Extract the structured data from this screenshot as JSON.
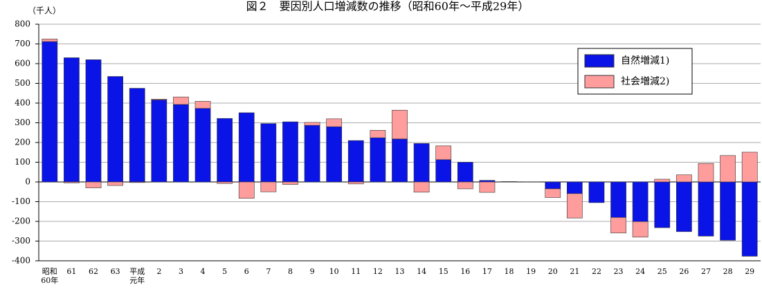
{
  "chart_data": {
    "type": "bar",
    "stacked": true,
    "title": "図２　要因別人口増減数の推移（昭和60年～平成29年）",
    "y_label": "（千人）",
    "categories": [
      "昭和\n60年",
      "61",
      "62",
      "63",
      "平成\n元年",
      "2",
      "3",
      "4",
      "5",
      "6",
      "7",
      "8",
      "9",
      "10",
      "11",
      "12",
      "13",
      "14",
      "15",
      "16",
      "17",
      "18",
      "19",
      "20",
      "21",
      "22",
      "23",
      "24",
      "25",
      "26",
      "27",
      "28",
      "29"
    ],
    "series": [
      {
        "name": "自然増減1)",
        "color": "#0a14e6",
        "values": [
          712,
          630,
          620,
          535,
          475,
          416,
          393,
          373,
          322,
          351,
          296,
          305,
          287,
          280,
          210,
          224,
          218,
          195,
          113,
          100,
          8,
          1,
          -1,
          -35,
          -59,
          -105,
          -180,
          -201,
          -232,
          -252,
          -275,
          -296,
          -377
        ]
      },
      {
        "name": "社会増減2)",
        "color": "#ff9c9c",
        "values": [
          13,
          -5,
          -30,
          -18,
          -3,
          4,
          38,
          36,
          -8,
          -83,
          -50,
          -13,
          15,
          40,
          -10,
          38,
          146,
          -52,
          70,
          -35,
          -53,
          1,
          1,
          -44,
          -124,
          0,
          -79,
          -79,
          14,
          36,
          94,
          134,
          151
        ]
      }
    ],
    "ylim": [
      -400,
      800
    ],
    "yticks": [
      -400,
      -300,
      -200,
      -100,
      0,
      100,
      200,
      300,
      400,
      500,
      600,
      700,
      800
    ],
    "grid": true,
    "legend": "top-right"
  }
}
